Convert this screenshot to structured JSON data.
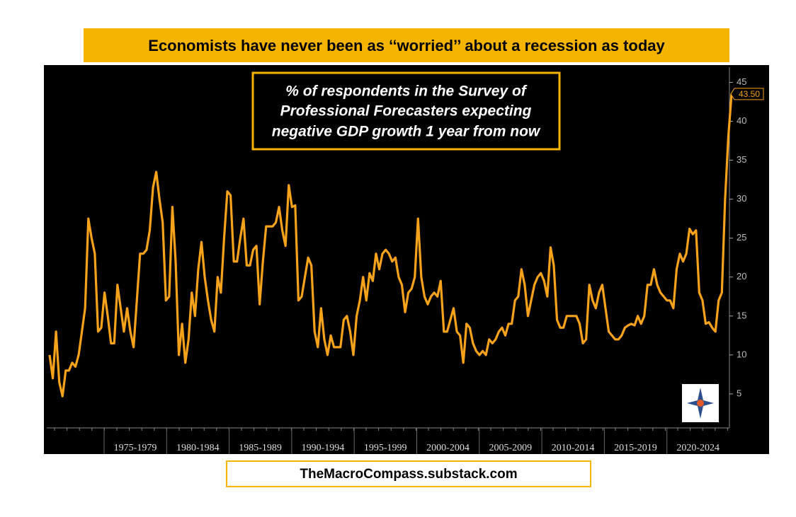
{
  "chart_data": {
    "type": "line",
    "title": "Economists have never been as ‘‘worried’’ about a recession as today",
    "subtitle": [
      "% of respondents in the Survey of",
      "Professional Forecasters expecting",
      "negative GDP growth 1 year from now"
    ],
    "footer": "TheMacroCompass.substack.com",
    "period_labels": [
      "1975-1979",
      "1980-1984",
      "1985-1989",
      "1990-1994",
      "1995-1999",
      "2000-2004",
      "2005-2009",
      "2010-2014",
      "2015-2019",
      "2020-2024"
    ],
    "color": "#f7a21b",
    "ylim": [
      1,
      46
    ],
    "yticks": [
      5,
      10,
      15,
      20,
      25,
      30,
      35,
      40,
      45
    ],
    "values": [
      10,
      7,
      13,
      6.5,
      4.7,
      8,
      8,
      9,
      8.5,
      10,
      13,
      16,
      27.5,
      25,
      23,
      13,
      13.5,
      18,
      15,
      11.5,
      11.5,
      19,
      16,
      13,
      16,
      13,
      11,
      17,
      23,
      23,
      23.5,
      26,
      31.5,
      33.5,
      30,
      27,
      17,
      17.5,
      29,
      22,
      10,
      14,
      9,
      12,
      18,
      15,
      21,
      24.5,
      20,
      17,
      14.5,
      13,
      20,
      18,
      25,
      31,
      30.5,
      22,
      22,
      25,
      27.5,
      21.5,
      21.5,
      23.5,
      24,
      16.5,
      22,
      26.5,
      26.5,
      26.5,
      27,
      29,
      26,
      24,
      31.8,
      29,
      29.2,
      17,
      17.5,
      20,
      22.5,
      21.5,
      13,
      11,
      16,
      12,
      10,
      12.5,
      11,
      11,
      11,
      14.5,
      15,
      13,
      10,
      15,
      17,
      20,
      17,
      20.5,
      19.5,
      23,
      21,
      23,
      23.5,
      23,
      22,
      22.5,
      20,
      19,
      15.5,
      18,
      18.5,
      20,
      27.5,
      20,
      17.5,
      16.5,
      17.5,
      18,
      17.5,
      19.5,
      13,
      13,
      14.5,
      16,
      13,
      12.5,
      9,
      14,
      13.5,
      11.5,
      10.5,
      10,
      10.5,
      10,
      12,
      11.5,
      12,
      13,
      13.5,
      12.5,
      14,
      14,
      17,
      17.5,
      21,
      19,
      15,
      17,
      19,
      20,
      20.5,
      19.5,
      17.5,
      23.8,
      21.5,
      14.5,
      13.5,
      13.5,
      15,
      15,
      15,
      15,
      14,
      11.5,
      12,
      19,
      17,
      16,
      18,
      19,
      16,
      13,
      12.5,
      12,
      12,
      12.5,
      13.5,
      13.8,
      14,
      13.8,
      15,
      14,
      15,
      19,
      19,
      21,
      19,
      18,
      17.5,
      17,
      17,
      16,
      21,
      23,
      22,
      23,
      26.2,
      25.5,
      26,
      18,
      17,
      14,
      14.2,
      13.5,
      13,
      17,
      18,
      30,
      38,
      43.5
    ],
    "last_value_label": "43.50"
  }
}
